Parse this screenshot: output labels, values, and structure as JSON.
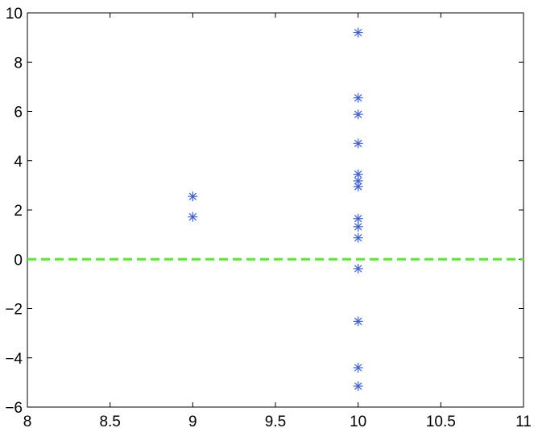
{
  "chart_data": {
    "type": "scatter",
    "title": "",
    "xlabel": "",
    "ylabel": "",
    "xlim": [
      8,
      11
    ],
    "ylim": [
      -6,
      10
    ],
    "xticks": [
      8,
      8.5,
      9,
      9.5,
      10,
      10.5,
      11
    ],
    "xtick_labels": [
      "8",
      "8.5",
      "9",
      "9.5",
      "10",
      "10.5",
      "11"
    ],
    "yticks": [
      -6,
      -4,
      -2,
      0,
      2,
      4,
      6,
      8,
      10
    ],
    "ytick_labels": [
      "−6",
      "−4",
      "−2",
      "0",
      "2",
      "4",
      "6",
      "8",
      "10"
    ],
    "grid": false,
    "marker": "asterisk",
    "marker_color": "#3a5fd8",
    "points": [
      {
        "x": 9,
        "y": 2.55
      },
      {
        "x": 9,
        "y": 1.72
      },
      {
        "x": 10,
        "y": 9.2
      },
      {
        "x": 10,
        "y": 6.55
      },
      {
        "x": 10,
        "y": 5.88
      },
      {
        "x": 10,
        "y": 4.7
      },
      {
        "x": 10,
        "y": 3.45
      },
      {
        "x": 10,
        "y": 3.18
      },
      {
        "x": 10,
        "y": 2.95
      },
      {
        "x": 10,
        "y": 1.65
      },
      {
        "x": 10,
        "y": 1.32
      },
      {
        "x": 10,
        "y": 0.87
      },
      {
        "x": 10,
        "y": -0.38
      },
      {
        "x": 10,
        "y": -2.52
      },
      {
        "x": 10,
        "y": -4.4
      },
      {
        "x": 10,
        "y": -5.15
      }
    ],
    "reference_line": {
      "y": 0,
      "style": "dashed",
      "color": "#55ee22"
    }
  }
}
